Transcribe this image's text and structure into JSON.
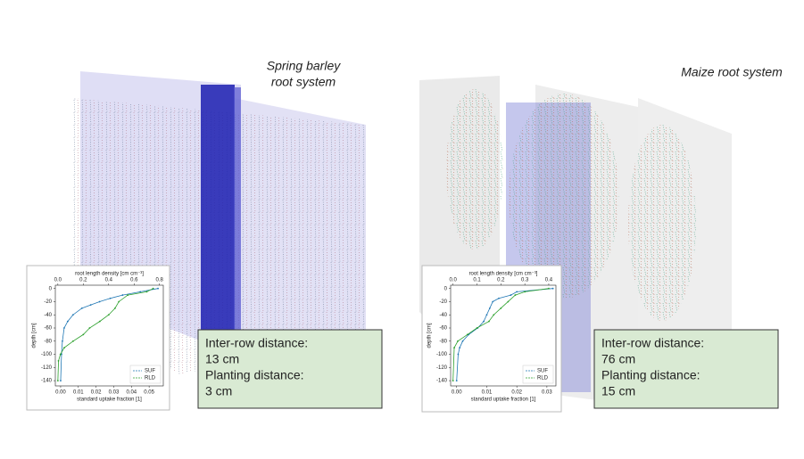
{
  "panels": [
    {
      "title_lines": [
        "Spring barley",
        "root system"
      ],
      "info": [
        "Inter-row distance:",
        "13 cm",
        "Planting distance:",
        "3 cm"
      ]
    },
    {
      "title_lines": [
        "Maize root system"
      ],
      "info": [
        "Inter-row distance:",
        "76 cm",
        "Planting distance:",
        "15 cm"
      ]
    }
  ],
  "chart_data": [
    {
      "type": "line",
      "x_label": "standard uptake fraction [1]",
      "x2_label": "root length density [cm cm⁻³]",
      "y_label": "depth [cm]",
      "xlim": [
        -0.003,
        0.058
      ],
      "xticks": [
        {
          "value": 0,
          "label": "0.00"
        },
        0.01,
        0.02,
        0.03,
        0.04,
        0.05
      ],
      "x2lim": [
        -0.02,
        0.83
      ],
      "x2ticks": [
        {
          "value": 0,
          "label": "0.0"
        },
        0.2,
        0.4,
        0.6,
        0.8
      ],
      "ylim": [
        -148,
        5
      ],
      "yticks": [
        0,
        -20,
        -40,
        -60,
        -80,
        -100,
        -120,
        -140
      ],
      "legend": "lower right",
      "series": [
        {
          "name": "SUF",
          "color": "#1f77b4",
          "axis": "x",
          "y": [
            0,
            -5,
            -10,
            -15,
            -20,
            -25,
            -30,
            -40,
            -50,
            -60,
            -80,
            -100,
            -140
          ],
          "values": [
            0.055,
            0.045,
            0.035,
            0.028,
            0.022,
            0.017,
            0.012,
            0.007,
            0.004,
            0.002,
            0.001,
            0.0005,
            0
          ]
        },
        {
          "name": "RLD",
          "color": "#2ca02c",
          "axis": "x2",
          "y": [
            0,
            -5,
            -10,
            -20,
            -30,
            -40,
            -50,
            -60,
            -70,
            -80,
            -90,
            -100,
            -110,
            -140
          ],
          "values": [
            0.75,
            0.7,
            0.55,
            0.48,
            0.45,
            0.4,
            0.33,
            0.25,
            0.2,
            0.12,
            0.05,
            0.02,
            0.005,
            0
          ]
        }
      ]
    },
    {
      "type": "line",
      "x_label": "standard uptake fraction [1]",
      "x2_label": "root length density [cm cm⁻³]",
      "y_label": "depth [cm]",
      "xlim": [
        -0.002,
        0.033
      ],
      "xticks": [
        {
          "value": 0,
          "label": "0.00"
        },
        0.01,
        0.02,
        0.03
      ],
      "x2lim": [
        -0.01,
        0.43
      ],
      "x2ticks": [
        {
          "value": 0,
          "label": "0.0"
        },
        0.1,
        0.2,
        0.3,
        0.4
      ],
      "ylim": [
        -148,
        5
      ],
      "yticks": [
        0,
        -20,
        -40,
        -60,
        -80,
        -100,
        -120,
        -140
      ],
      "legend": "lower right",
      "series": [
        {
          "name": "SUF",
          "color": "#1f77b4",
          "axis": "x",
          "y": [
            0,
            -5,
            -10,
            -15,
            -20,
            -30,
            -40,
            -50,
            -60,
            -70,
            -80,
            -90,
            -100,
            -140
          ],
          "values": [
            0.032,
            0.02,
            0.018,
            0.014,
            0.012,
            0.011,
            0.01,
            0.009,
            0.007,
            0.004,
            0.002,
            0.001,
            0.0005,
            0
          ]
        },
        {
          "name": "RLD",
          "color": "#2ca02c",
          "axis": "x2",
          "y": [
            0,
            -5,
            -10,
            -20,
            -30,
            -40,
            -50,
            -60,
            -70,
            -80,
            -90,
            -140
          ],
          "values": [
            0.4,
            0.3,
            0.26,
            0.23,
            0.2,
            0.17,
            0.15,
            0.1,
            0.06,
            0.02,
            0.005,
            0
          ]
        }
      ]
    }
  ]
}
